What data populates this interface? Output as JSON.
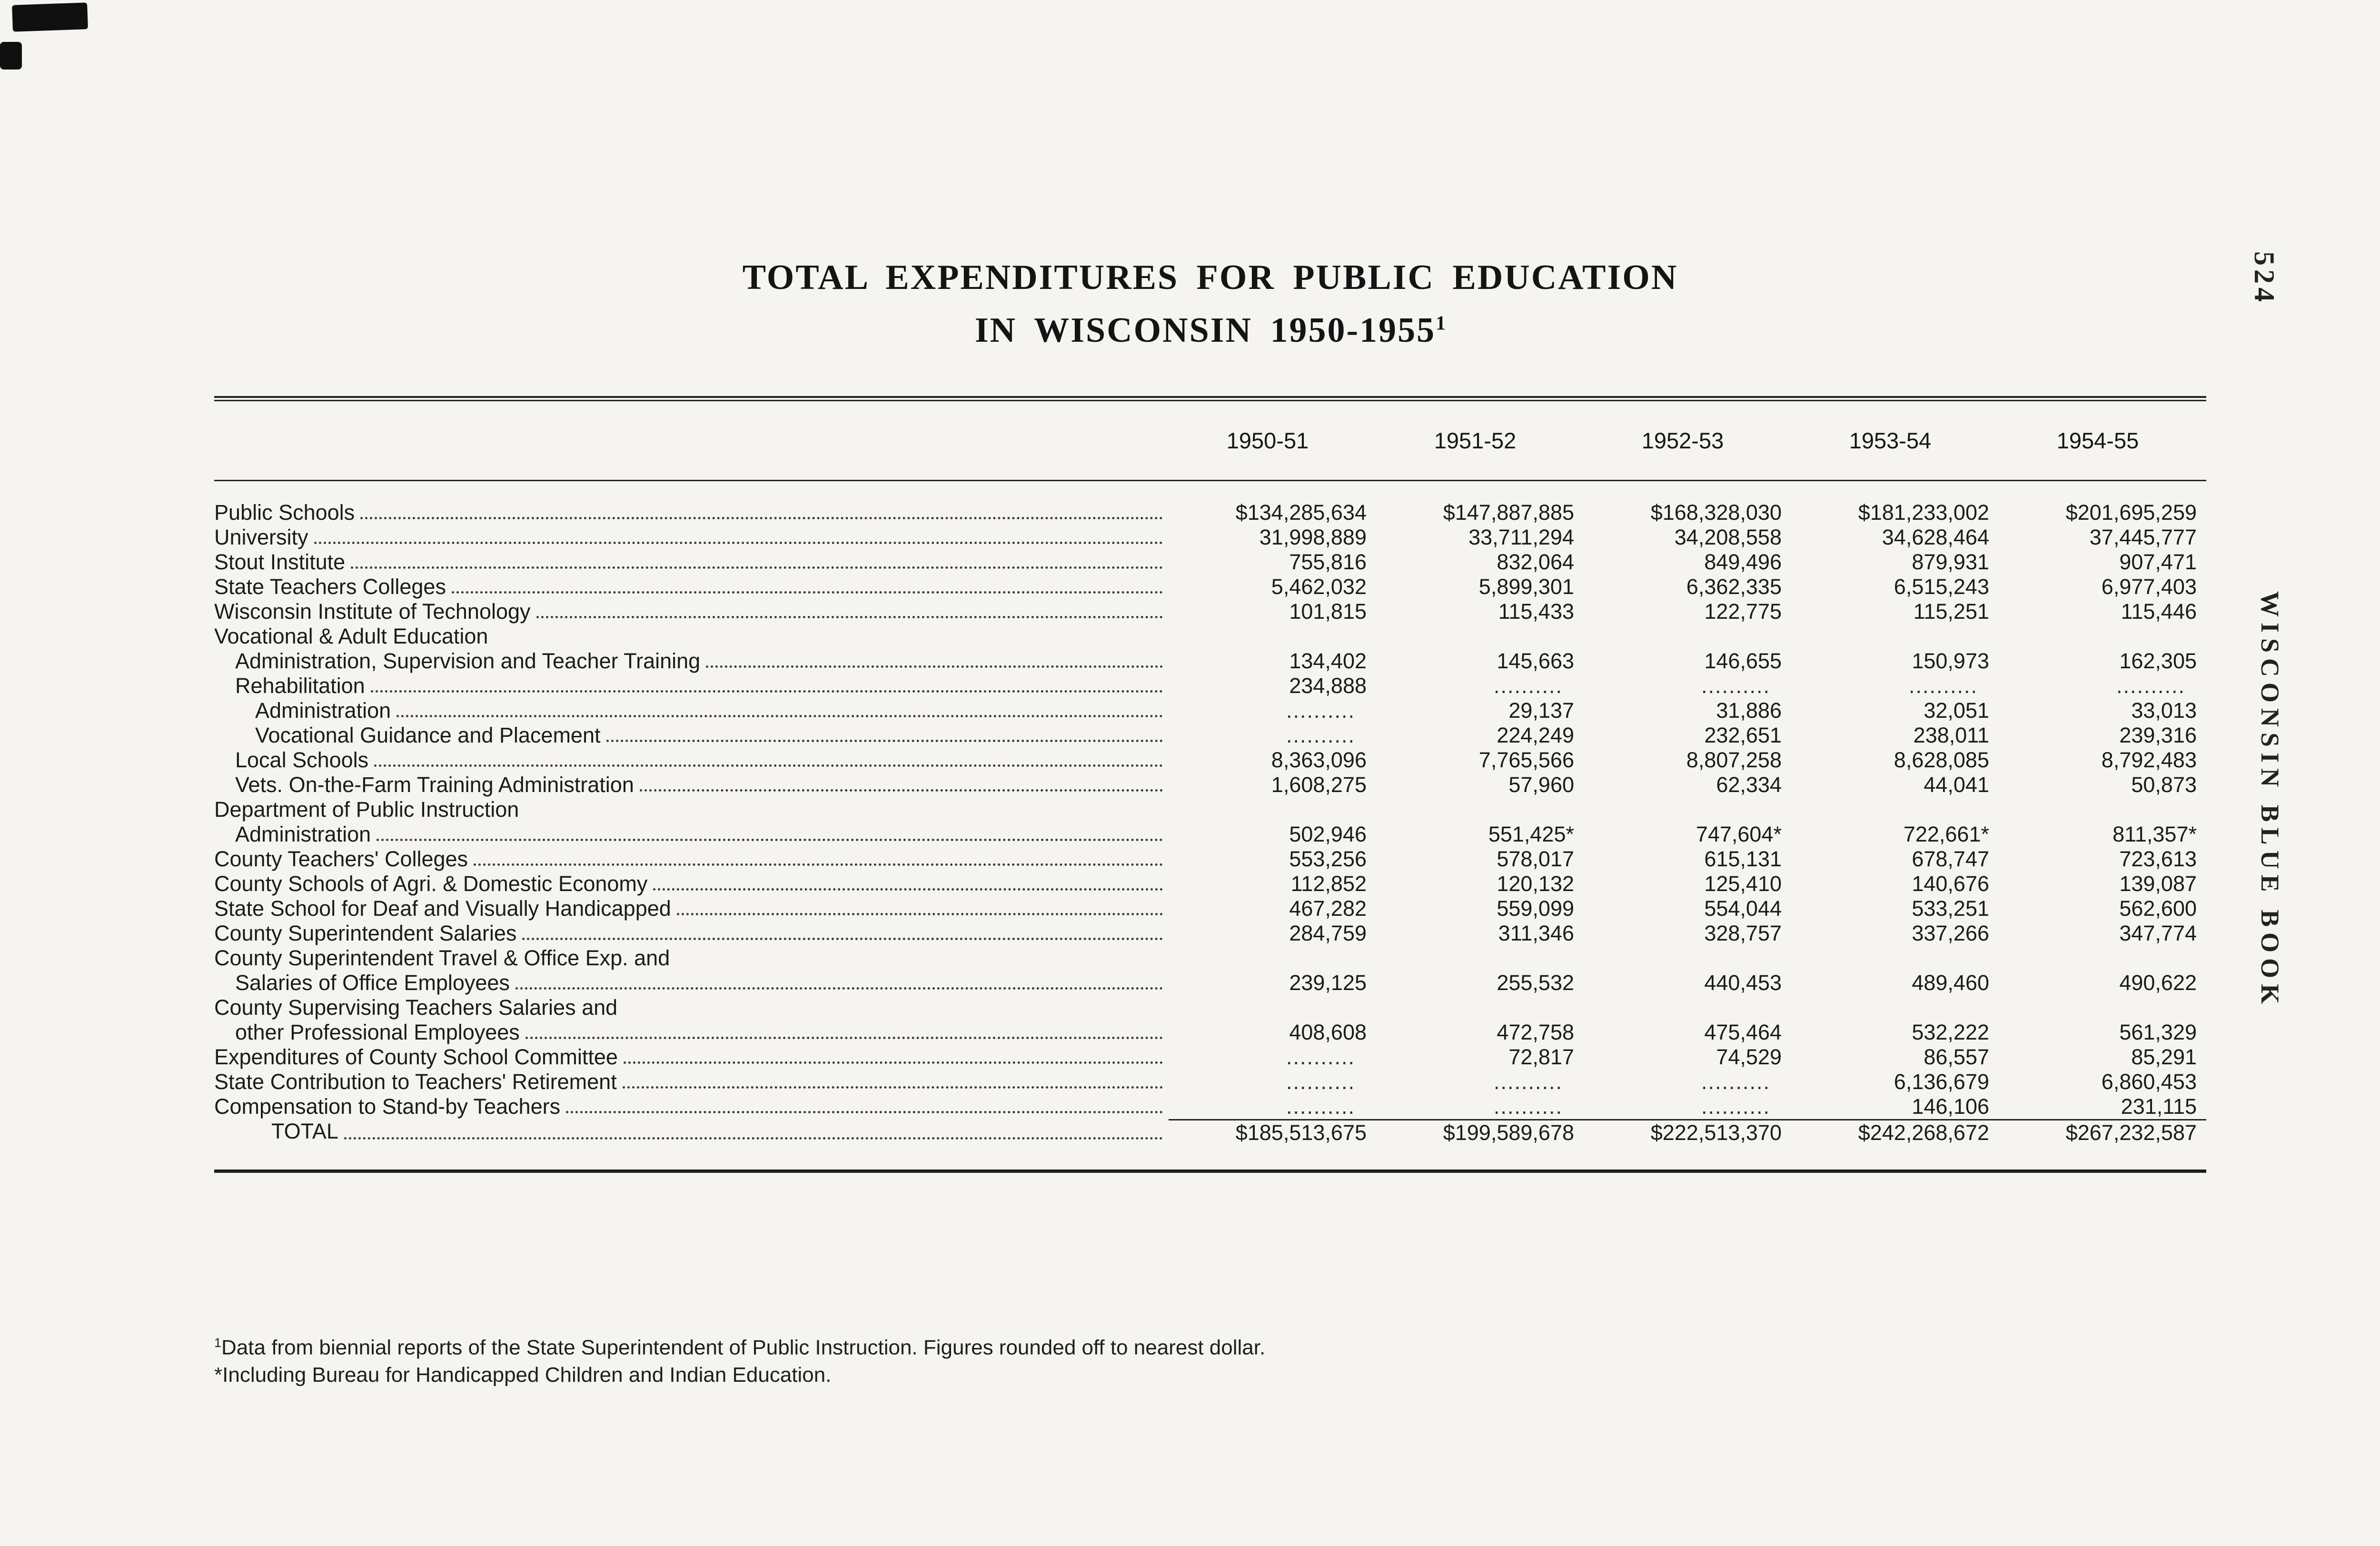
{
  "page": {
    "number": "524",
    "side_label": "WISCONSIN BLUE BOOK"
  },
  "title": {
    "line1": "TOTAL EXPENDITURES FOR PUBLIC EDUCATION",
    "line2": "IN WISCONSIN 1950-1955",
    "footnote_marker": "1"
  },
  "colors": {
    "paper": "#f5f4f0",
    "ink": "#1b1b1b"
  },
  "table": {
    "columns": [
      "1950-51",
      "1951-52",
      "1952-53",
      "1953-54",
      "1954-55"
    ],
    "rows": [
      {
        "label": "Public Schools",
        "indent": 0,
        "dots": true,
        "values": [
          "$134,285,634",
          "$147,887,885",
          "$168,328,030",
          "$181,233,002",
          "$201,695,259"
        ]
      },
      {
        "label": "University",
        "indent": 0,
        "dots": true,
        "values": [
          "31,998,889",
          "33,711,294",
          "34,208,558",
          "34,628,464",
          "37,445,777"
        ]
      },
      {
        "label": "Stout Institute",
        "indent": 0,
        "dots": true,
        "values": [
          "755,816",
          "832,064",
          "849,496",
          "879,931",
          "907,471"
        ]
      },
      {
        "label": "State Teachers Colleges",
        "indent": 0,
        "dots": true,
        "values": [
          "5,462,032",
          "5,899,301",
          "6,362,335",
          "6,515,243",
          "6,977,403"
        ]
      },
      {
        "label": "Wisconsin Institute of Technology",
        "indent": 0,
        "dots": true,
        "values": [
          "101,815",
          "115,433",
          "122,775",
          "115,251",
          "115,446"
        ]
      },
      {
        "label": "Vocational & Adult Education",
        "indent": 0,
        "dots": false,
        "values": []
      },
      {
        "label": "Administration, Supervision and Teacher Training",
        "indent": 1,
        "dots": true,
        "values": [
          "134,402",
          "145,663",
          "146,655",
          "150,973",
          "162,305"
        ]
      },
      {
        "label": "Rehabilitation",
        "indent": 1,
        "dots": true,
        "values": [
          "234,888",
          "..........",
          "..........",
          "..........",
          ".........."
        ]
      },
      {
        "label": "Administration",
        "indent": 2,
        "dots": true,
        "values": [
          "..........",
          "29,137",
          "31,886",
          "32,051",
          "33,013"
        ]
      },
      {
        "label": "Vocational Guidance and Placement",
        "indent": 2,
        "dots": true,
        "values": [
          "..........",
          "224,249",
          "232,651",
          "238,011",
          "239,316"
        ]
      },
      {
        "label": "Local Schools",
        "indent": 1,
        "dots": true,
        "values": [
          "8,363,096",
          "7,765,566",
          "8,807,258",
          "8,628,085",
          "8,792,483"
        ]
      },
      {
        "label": "Vets. On-the-Farm Training Administration",
        "indent": 1,
        "dots": true,
        "values": [
          "1,608,275",
          "57,960",
          "62,334",
          "44,041",
          "50,873"
        ]
      },
      {
        "label": "Department of Public Instruction",
        "indent": 0,
        "dots": false,
        "values": []
      },
      {
        "label": "Administration",
        "indent": 1,
        "dots": true,
        "values": [
          "502,946",
          "551,425*",
          "747,604*",
          "722,661*",
          "811,357*"
        ]
      },
      {
        "label": "County Teachers' Colleges",
        "indent": 0,
        "dots": true,
        "values": [
          "553,256",
          "578,017",
          "615,131",
          "678,747",
          "723,613"
        ]
      },
      {
        "label": "County Schools of Agri. & Domestic Economy",
        "indent": 0,
        "dots": true,
        "values": [
          "112,852",
          "120,132",
          "125,410",
          "140,676",
          "139,087"
        ]
      },
      {
        "label": "State School for Deaf and Visually Handicapped",
        "indent": 0,
        "dots": true,
        "values": [
          "467,282",
          "559,099",
          "554,044",
          "533,251",
          "562,600"
        ]
      },
      {
        "label": "County Superintendent Salaries",
        "indent": 0,
        "dots": true,
        "values": [
          "284,759",
          "311,346",
          "328,757",
          "337,266",
          "347,774"
        ]
      },
      {
        "label": "County Superintendent Travel & Office Exp. and",
        "indent": 0,
        "dots": false,
        "values": []
      },
      {
        "label": "Salaries of Office Employees",
        "indent": 1,
        "dots": true,
        "values": [
          "239,125",
          "255,532",
          "440,453",
          "489,460",
          "490,622"
        ]
      },
      {
        "label": "County Supervising Teachers Salaries and",
        "indent": 0,
        "dots": false,
        "values": []
      },
      {
        "label": "other Professional Employees",
        "indent": 1,
        "dots": true,
        "values": [
          "408,608",
          "472,758",
          "475,464",
          "532,222",
          "561,329"
        ]
      },
      {
        "label": "Expenditures of County School Committee",
        "indent": 0,
        "dots": true,
        "values": [
          "..........",
          "72,817",
          "74,529",
          "86,557",
          "85,291"
        ]
      },
      {
        "label": "State Contribution to Teachers' Retirement",
        "indent": 0,
        "dots": true,
        "values": [
          "..........",
          "..........",
          "..........",
          "6,136,679",
          "6,860,453"
        ]
      },
      {
        "label": "Compensation to Stand-by Teachers",
        "indent": 0,
        "dots": true,
        "values": [
          "..........",
          "..........",
          "..........",
          "146,106",
          "231,115"
        ]
      },
      {
        "label": "TOTAL",
        "indent": 3,
        "dots": true,
        "total": true,
        "values": [
          "$185,513,675",
          "$199,589,678",
          "$222,513,370",
          "$242,268,672",
          "$267,232,587"
        ]
      }
    ]
  },
  "footnotes": [
    {
      "marker": "1",
      "superscript": true,
      "text": "Data from biennial reports of the State Superintendent of Public Instruction. Figures rounded off to nearest dollar."
    },
    {
      "marker": "*",
      "superscript": false,
      "text": "Including Bureau for Handicapped Children and Indian Education."
    }
  ]
}
